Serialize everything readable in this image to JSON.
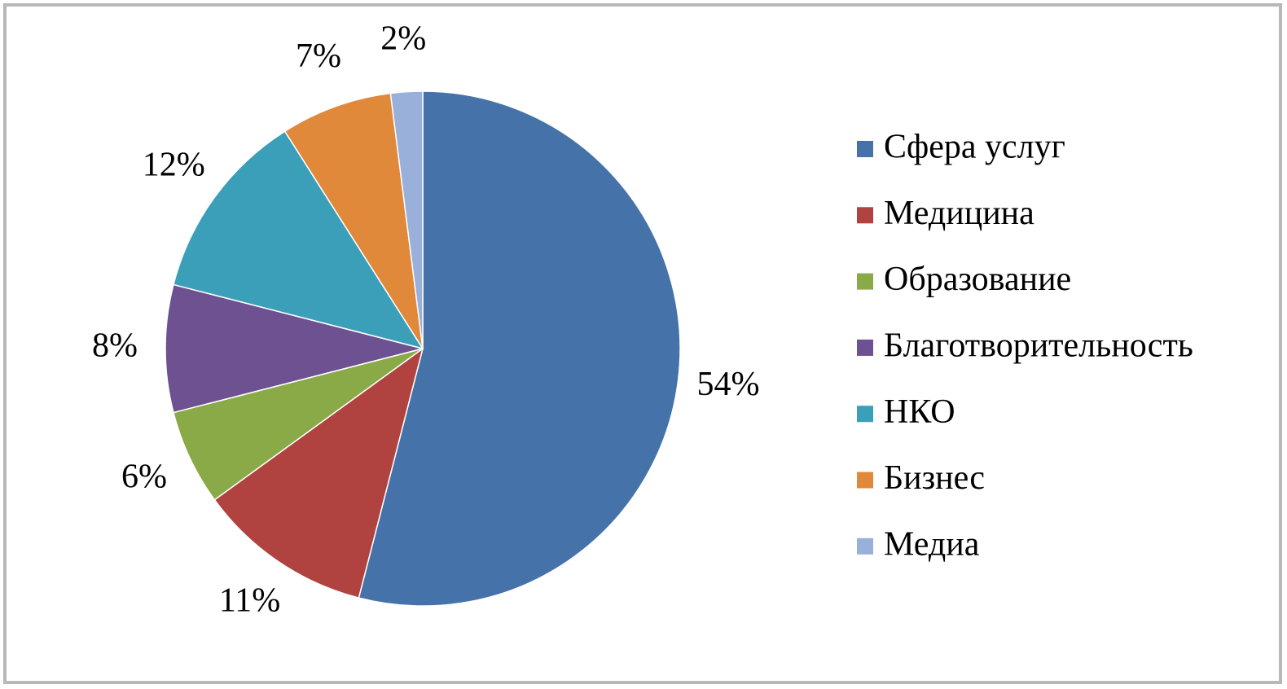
{
  "chart_data": {
    "type": "pie",
    "categories": [
      "Сфера услуг",
      "Медицина",
      "Образование",
      "Благотворительность",
      "НКО",
      "Бизнес",
      "Медиа"
    ],
    "values": [
      54,
      11,
      6,
      8,
      12,
      7,
      2
    ],
    "value_labels": [
      "54%",
      "11%",
      "6%",
      "8%",
      "12%",
      "7%",
      "2%"
    ],
    "colors": [
      "#4672aa",
      "#b0433f",
      "#8aaa48",
      "#6d5190",
      "#3b9fba",
      "#e0893a",
      "#98b0da"
    ],
    "legend": "right"
  }
}
